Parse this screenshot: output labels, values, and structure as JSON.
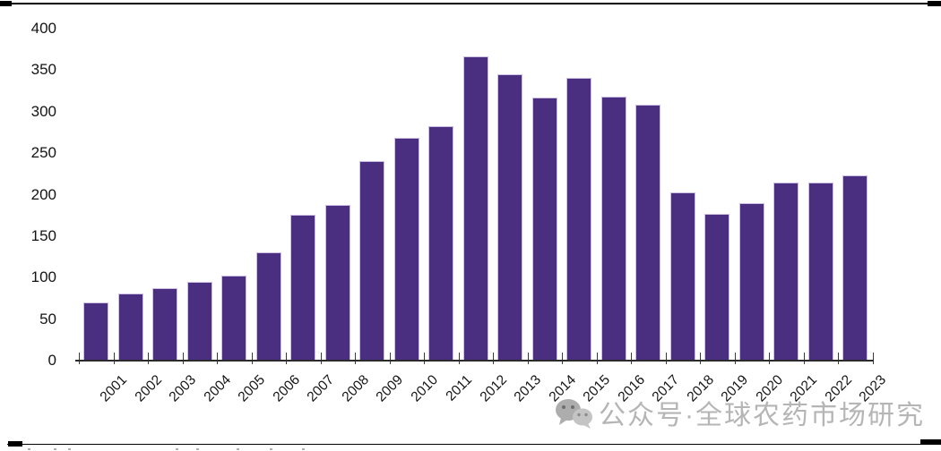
{
  "watermark": {
    "icon": "wechat-icon",
    "text": "公众号·全球农药市场研究",
    "color": "#b5b5b5"
  },
  "chart_data": {
    "type": "bar",
    "title": "",
    "xlabel": "",
    "ylabel": "",
    "categories": [
      "2001",
      "2002",
      "2003",
      "2004",
      "2005",
      "2006",
      "2007",
      "2008",
      "2009",
      "2010",
      "2011",
      "2012",
      "2013",
      "2014",
      "2015",
      "2016",
      "2017",
      "2018",
      "2019",
      "2020",
      "2021",
      "2022",
      "2023"
    ],
    "values": [
      70,
      81,
      87,
      95,
      102,
      130,
      176,
      188,
      240,
      268,
      283,
      367,
      345,
      317,
      341,
      318,
      308,
      203,
      177,
      190,
      215,
      215,
      223
    ],
    "ylim": [
      0,
      400
    ],
    "ytick_step": 50,
    "yticks": [
      0,
      50,
      100,
      150,
      200,
      250,
      300,
      350,
      400
    ],
    "grid": false,
    "legend_position": "none",
    "bar_color": "#4A2F80",
    "bar_edge_color": "#CDBFE4",
    "axis_color": "#2b2b2b",
    "tick_style": "cross"
  }
}
